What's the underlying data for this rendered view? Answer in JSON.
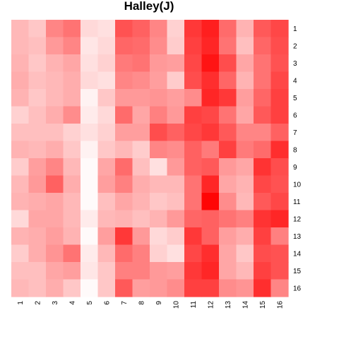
{
  "chart_data": {
    "type": "heatmap",
    "title": "Halley(J)",
    "xlabel": "",
    "ylabel": "",
    "x_labels": [
      "1",
      "2",
      "3",
      "4",
      "5",
      "6",
      "7",
      "8",
      "9",
      "10",
      "11",
      "12",
      "13",
      "14",
      "15",
      "16"
    ],
    "y_labels": [
      "1",
      "2",
      "3",
      "4",
      "5",
      "6",
      "7",
      "8",
      "9",
      "10",
      "11",
      "12",
      "13",
      "14",
      "15",
      "16"
    ],
    "value_range": [
      0,
      1
    ],
    "color_low": "#ffffff",
    "color_high": "#ff0000",
    "legend": "none",
    "values": [
      [
        0.28,
        0.22,
        0.48,
        0.55,
        0.15,
        0.12,
        0.68,
        0.62,
        0.48,
        0.18,
        0.78,
        0.88,
        0.58,
        0.3,
        0.65,
        0.72
      ],
      [
        0.28,
        0.25,
        0.4,
        0.48,
        0.1,
        0.15,
        0.6,
        0.58,
        0.45,
        0.2,
        0.75,
        0.85,
        0.55,
        0.25,
        0.6,
        0.7
      ],
      [
        0.3,
        0.22,
        0.3,
        0.35,
        0.12,
        0.18,
        0.52,
        0.55,
        0.4,
        0.38,
        0.72,
        0.92,
        0.7,
        0.35,
        0.55,
        0.68
      ],
      [
        0.32,
        0.25,
        0.28,
        0.32,
        0.15,
        0.12,
        0.48,
        0.45,
        0.38,
        0.2,
        0.7,
        0.82,
        0.6,
        0.3,
        0.55,
        0.72
      ],
      [
        0.3,
        0.22,
        0.28,
        0.32,
        0.05,
        0.22,
        0.4,
        0.4,
        0.42,
        0.38,
        0.45,
        0.85,
        0.78,
        0.38,
        0.6,
        0.75
      ],
      [
        0.18,
        0.25,
        0.32,
        0.45,
        0.08,
        0.15,
        0.58,
        0.35,
        0.5,
        0.4,
        0.75,
        0.72,
        0.55,
        0.35,
        0.65,
        0.75
      ],
      [
        0.25,
        0.25,
        0.25,
        0.18,
        0.12,
        0.18,
        0.38,
        0.38,
        0.7,
        0.62,
        0.72,
        0.78,
        0.65,
        0.48,
        0.48,
        0.62
      ],
      [
        0.3,
        0.28,
        0.32,
        0.22,
        0.05,
        0.22,
        0.28,
        0.2,
        0.48,
        0.45,
        0.62,
        0.52,
        0.75,
        0.52,
        0.58,
        0.82
      ],
      [
        0.2,
        0.38,
        0.48,
        0.28,
        0.02,
        0.35,
        0.58,
        0.25,
        0.12,
        0.4,
        0.62,
        0.65,
        0.4,
        0.35,
        0.8,
        0.7
      ],
      [
        0.28,
        0.4,
        0.62,
        0.32,
        0.02,
        0.38,
        0.5,
        0.32,
        0.28,
        0.28,
        0.55,
        0.85,
        0.35,
        0.3,
        0.72,
        0.68
      ],
      [
        0.3,
        0.32,
        0.35,
        0.28,
        0.02,
        0.25,
        0.35,
        0.3,
        0.22,
        0.25,
        0.55,
        0.98,
        0.45,
        0.28,
        0.65,
        0.72
      ],
      [
        0.15,
        0.35,
        0.35,
        0.28,
        0.08,
        0.28,
        0.3,
        0.25,
        0.3,
        0.4,
        0.6,
        0.62,
        0.55,
        0.5,
        0.8,
        0.85
      ],
      [
        0.3,
        0.32,
        0.38,
        0.3,
        0.02,
        0.38,
        0.78,
        0.4,
        0.15,
        0.2,
        0.78,
        0.62,
        0.38,
        0.32,
        0.75,
        0.5
      ],
      [
        0.2,
        0.32,
        0.42,
        0.55,
        0.08,
        0.28,
        0.58,
        0.5,
        0.18,
        0.12,
        0.72,
        0.82,
        0.35,
        0.22,
        0.7,
        0.68
      ],
      [
        0.25,
        0.25,
        0.35,
        0.38,
        0.1,
        0.22,
        0.5,
        0.5,
        0.4,
        0.38,
        0.78,
        0.85,
        0.35,
        0.28,
        0.75,
        0.68
      ],
      [
        0.28,
        0.25,
        0.32,
        0.22,
        0.02,
        0.22,
        0.65,
        0.38,
        0.4,
        0.45,
        0.75,
        0.75,
        0.45,
        0.42,
        0.82,
        0.48
      ]
    ]
  }
}
